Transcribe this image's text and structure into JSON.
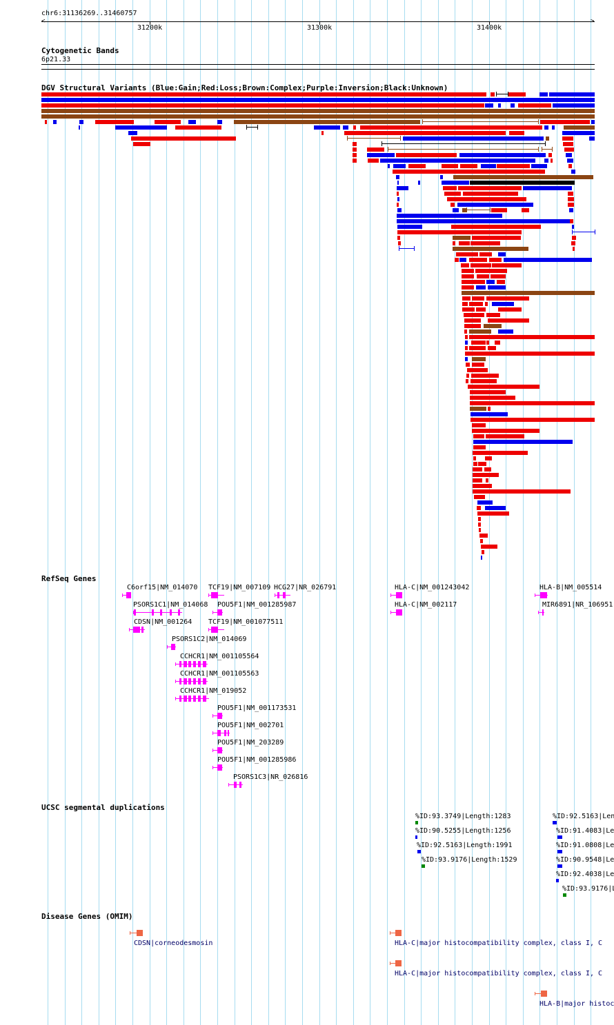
{
  "region": "chr6:31136269..31460757",
  "ruler": {
    "ticks": [
      "31200k",
      "31300k",
      "31400k"
    ]
  },
  "tracks": {
    "cytoband": {
      "title": "Cytogenetic Bands",
      "band": "6p21.33"
    },
    "dgv": {
      "title": "DGV Structural Variants (Blue:Gain;Red:Loss;Brown:Complex;Purple:Inversion;Black:Unknown)",
      "colors": {
        "gain": "#0000ee",
        "loss": "#ee0000",
        "complex": "#8b4513",
        "inversion": "#800080",
        "unknown": "#000000"
      }
    },
    "refseq": {
      "title": "RefSeq Genes",
      "color": "#ff00ff",
      "genes": [
        "C6orf15|NM_014070",
        "TCF19|NM_007109",
        "HCG27|NR_026791",
        "HLA-C|NM_001243042",
        "HLA-B|NM_005514",
        "PSORS1C1|NM_014068",
        "POU5F1|NM_001285987",
        "HLA-C|NM_002117",
        "MIR6891|NR_106951",
        "CDSN|NM_001264",
        "TCF19|NM_001077511",
        "PSORS1C2|NM_014069",
        "CCHCR1|NM_001105564",
        "CCHCR1|NM_001105563",
        "CCHCR1|NM_019052",
        "POU5F1|NM_001173531",
        "POU5F1|NM_002701",
        "POU5F1|NM_203289",
        "POU5F1|NM_001285986",
        "PSORS1C3|NR_026816"
      ]
    },
    "segdup": {
      "title": "UCSC segmental duplications",
      "items": [
        "%ID:93.3749|Length:1283",
        "%ID:90.5255|Length:1256",
        "%ID:92.5163|Length:1991",
        "%ID:93.9176|Length:1529",
        "%ID:92.5163|Len",
        "%ID:91.4083|Le",
        "%ID:91.0808|Le",
        "%ID:90.9548|Le",
        "%ID:92.4038|Le",
        "%ID:93.9176|L"
      ]
    },
    "omim": {
      "title": "Disease Genes (OMIM)",
      "color": "#ee6644",
      "items": [
        "CDSN|corneodesmosin",
        "HLA-C|major histocompatibility complex, class I, C",
        "HLA-C|major histocompatibility complex, class I, C",
        "HLA-B|major histoc"
      ]
    }
  }
}
